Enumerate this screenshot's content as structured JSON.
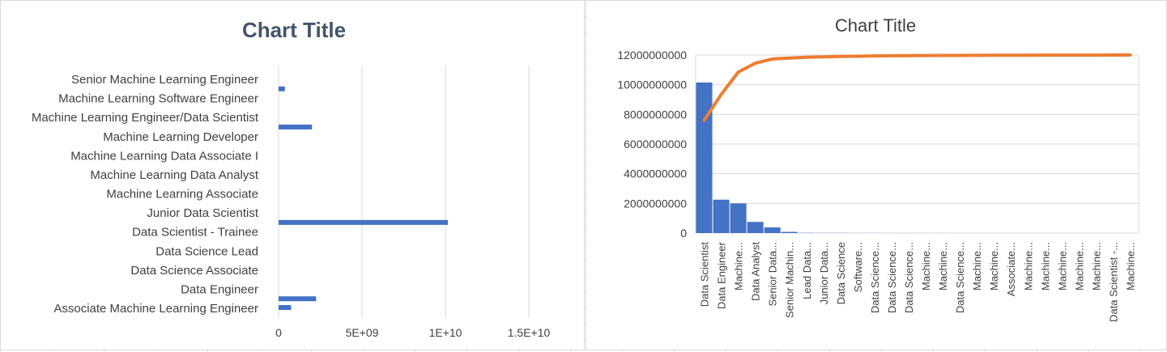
{
  "chart_data": [
    {
      "type": "bar",
      "orientation": "horizontal",
      "title": "Chart Title",
      "categories": [
        "Senior Machine Learning Engineer",
        "Machine Learning Software Engineer",
        "Machine Learning Engineer/Data Scientist",
        "Machine Learning Developer",
        "Machine Learning Data Associate I",
        "Machine Learning Data Analyst",
        "Machine Learning Associate",
        "Junior Data Scientist",
        "Data Scientist - Trainee",
        "Data Science Lead",
        "Data Science Associate",
        "Data Engineer",
        "Associate Machine Learning Engineer"
      ],
      "bars": [
        {
          "after_label": 0,
          "value": 380000000
        },
        {
          "after_label": 2,
          "value": 2000000000
        },
        {
          "after_label": 7,
          "value": 10150000000
        },
        {
          "after_label": 11,
          "value": 2250000000
        },
        {
          "after_label": 11,
          "value": 750000000,
          "second": true
        }
      ],
      "xticks": [
        "0",
        "5E+09",
        "1E+10",
        "1.5E+10"
      ],
      "xlim": [
        0,
        15000000000
      ],
      "color": "#4472c4",
      "grid": true
    },
    {
      "type": "pareto",
      "title": "Chart Title",
      "categories": [
        "Data Scientist",
        "Data Engineer",
        "Machine...",
        "Data Analyst",
        "Senior Data...",
        "Senior Machin...",
        "Lead Data...",
        "Junior Data...",
        "Data Science",
        "Software...",
        "Data Science...",
        "Data Science...",
        "Data Science...",
        "Machine...",
        "Machine...",
        "Data Science...",
        "Machine...",
        "Machine...",
        "Associate...",
        "Machine...",
        "Machine...",
        "Machine...",
        "Machine...",
        "Machine...",
        "Data Scientist -...",
        "Machine..."
      ],
      "values": [
        10150000000,
        2250000000,
        2000000000,
        750000000,
        380000000,
        80000000,
        15000000,
        10000000,
        8000000,
        6000000,
        5000000,
        4000000,
        3000000,
        2500000,
        2000000,
        1500000,
        1200000,
        1000000,
        800000,
        600000,
        500000,
        400000,
        300000,
        200000,
        100000,
        50000
      ],
      "cumulative_line": [
        7600000000,
        9350000000,
        10850000000,
        11450000000,
        11730000000,
        11800000000,
        11850000000,
        11880000000,
        11900000000,
        11920000000,
        11940000000,
        11950000000,
        11960000000,
        11965000000,
        11970000000,
        11975000000,
        11980000000,
        11985000000,
        11988000000,
        11990000000,
        11992000000,
        11994000000,
        11996000000,
        11997000000,
        11998000000,
        12000000000
      ],
      "yticks": [
        "0",
        "2000000000",
        "4000000000",
        "6000000000",
        "8000000000",
        "10000000000",
        "12000000000"
      ],
      "ylim": [
        0,
        12000000000
      ],
      "bar_color": "#4472c4",
      "line_color": "#ed7d31",
      "grid": true
    }
  ]
}
